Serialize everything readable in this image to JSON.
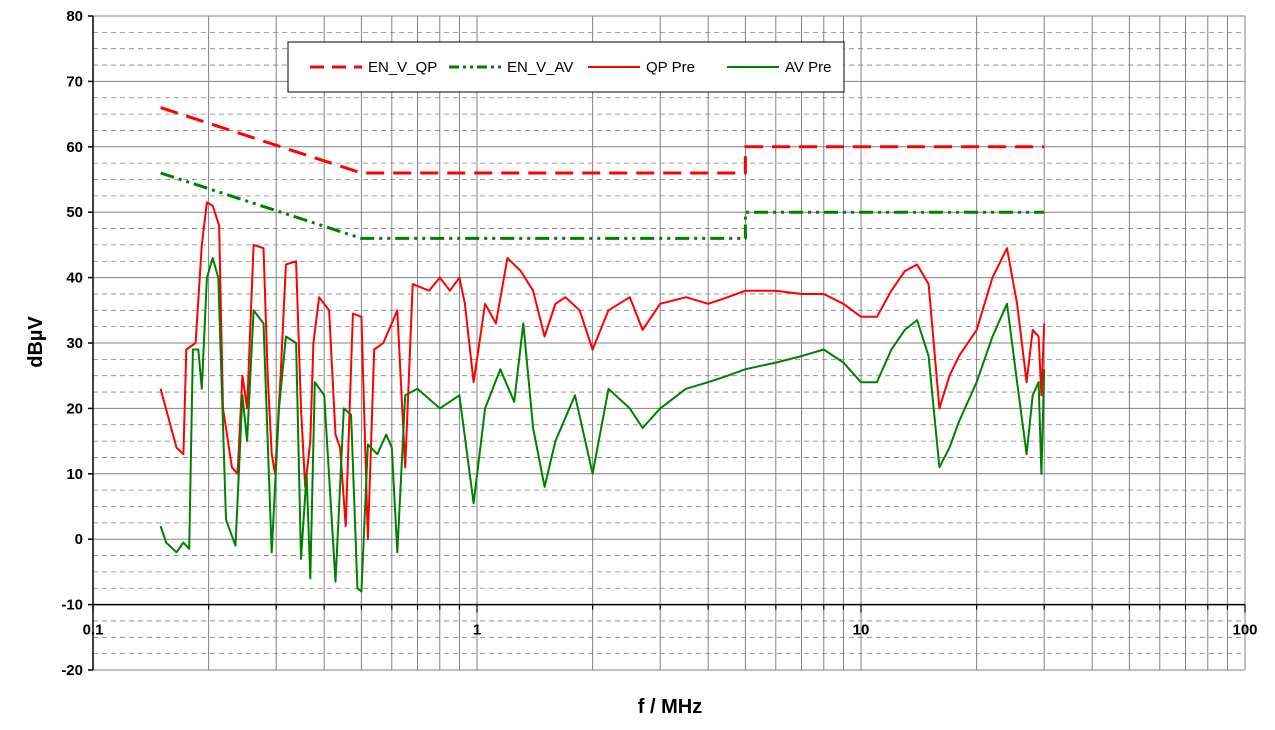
{
  "chart_data": {
    "type": "line",
    "title": "",
    "xlabel": "f / MHz",
    "ylabel": "dBµV",
    "x_scale": "log",
    "xlim": [
      0.1,
      100
    ],
    "ylim": [
      -20,
      80
    ],
    "x_ticks": [
      {
        "value": 0.1,
        "label": "0.1"
      },
      {
        "value": 1,
        "label": "1"
      },
      {
        "value": 10,
        "label": "10"
      },
      {
        "value": 100,
        "label": "100"
      }
    ],
    "y_ticks": [
      {
        "value": 80,
        "label": "80"
      },
      {
        "value": 70,
        "label": "70"
      },
      {
        "value": 60,
        "label": "60"
      },
      {
        "value": 50,
        "label": "50"
      },
      {
        "value": 40,
        "label": "40"
      },
      {
        "value": 30,
        "label": "30"
      },
      {
        "value": 20,
        "label": "20"
      },
      {
        "value": 10,
        "label": "10"
      },
      {
        "value": 0,
        "label": "0"
      },
      {
        "value": -10,
        "label": "-10"
      },
      {
        "value": -20,
        "label": "-20"
      }
    ],
    "grid": true,
    "legend_position": "top",
    "series": [
      {
        "name": "EN_V_QP",
        "color": "#ff0000",
        "dash": "dashed",
        "points": [
          [
            0.15,
            66
          ],
          [
            0.5,
            56
          ],
          [
            5,
            56
          ],
          [
            5,
            60
          ],
          [
            30,
            60
          ]
        ]
      },
      {
        "name": "EN_V_AV",
        "color": "#008000",
        "dash": "dash-dot-dot",
        "points": [
          [
            0.15,
            56
          ],
          [
            0.5,
            46
          ],
          [
            5,
            46
          ],
          [
            5,
            50
          ],
          [
            30,
            50
          ]
        ]
      },
      {
        "name": "QP Pre",
        "color": "#ff0000",
        "dash": "solid",
        "points": [
          [
            0.15,
            23
          ],
          [
            0.165,
            14
          ],
          [
            0.172,
            13
          ],
          [
            0.175,
            29
          ],
          [
            0.185,
            30
          ],
          [
            0.192,
            45
          ],
          [
            0.198,
            51.5
          ],
          [
            0.205,
            51
          ],
          [
            0.213,
            48
          ],
          [
            0.218,
            20
          ],
          [
            0.23,
            11
          ],
          [
            0.238,
            10
          ],
          [
            0.245,
            25
          ],
          [
            0.252,
            20
          ],
          [
            0.262,
            45
          ],
          [
            0.278,
            44.5
          ],
          [
            0.285,
            25
          ],
          [
            0.292,
            13
          ],
          [
            0.298,
            10
          ],
          [
            0.308,
            25
          ],
          [
            0.318,
            42
          ],
          [
            0.338,
            42.5
          ],
          [
            0.348,
            20
          ],
          [
            0.357,
            8
          ],
          [
            0.368,
            15
          ],
          [
            0.375,
            30
          ],
          [
            0.388,
            37
          ],
          [
            0.412,
            35
          ],
          [
            0.428,
            16
          ],
          [
            0.44,
            14
          ],
          [
            0.455,
            2
          ],
          [
            0.475,
            34.5
          ],
          [
            0.5,
            34
          ],
          [
            0.52,
            0
          ],
          [
            0.54,
            29
          ],
          [
            0.57,
            30
          ],
          [
            0.59,
            32
          ],
          [
            0.62,
            35
          ],
          [
            0.65,
            11
          ],
          [
            0.68,
            39
          ],
          [
            0.75,
            38
          ],
          [
            0.8,
            40
          ],
          [
            0.85,
            38
          ],
          [
            0.9,
            40
          ],
          [
            0.93,
            36
          ],
          [
            0.98,
            24
          ],
          [
            1.05,
            36
          ],
          [
            1.12,
            33
          ],
          [
            1.2,
            43
          ],
          [
            1.3,
            41
          ],
          [
            1.4,
            38
          ],
          [
            1.5,
            31
          ],
          [
            1.6,
            36
          ],
          [
            1.7,
            37
          ],
          [
            1.85,
            35
          ],
          [
            2.0,
            29
          ],
          [
            2.2,
            35
          ],
          [
            2.5,
            37
          ],
          [
            2.7,
            32
          ],
          [
            3.0,
            36
          ],
          [
            3.5,
            37
          ],
          [
            4.0,
            36
          ],
          [
            4.5,
            37
          ],
          [
            5.0,
            38
          ],
          [
            6.0,
            38
          ],
          [
            7.0,
            37.5
          ],
          [
            8.0,
            37.5
          ],
          [
            9.0,
            36
          ],
          [
            10.0,
            34
          ],
          [
            11.0,
            34
          ],
          [
            12.0,
            38
          ],
          [
            13.0,
            41
          ],
          [
            14.0,
            42
          ],
          [
            15.0,
            39
          ],
          [
            16.0,
            20
          ],
          [
            17.0,
            25
          ],
          [
            18.0,
            28
          ],
          [
            20.0,
            32
          ],
          [
            22.0,
            40
          ],
          [
            24.0,
            44.5
          ],
          [
            25.5,
            36
          ],
          [
            27.0,
            24
          ],
          [
            28.0,
            32
          ],
          [
            29.0,
            31
          ],
          [
            29.5,
            22
          ],
          [
            30.0,
            33
          ]
        ]
      },
      {
        "name": "AV Pre",
        "color": "#008000",
        "dash": "solid",
        "points": [
          [
            0.15,
            2
          ],
          [
            0.155,
            -0.5
          ],
          [
            0.165,
            -2
          ],
          [
            0.172,
            -0.5
          ],
          [
            0.178,
            -1.5
          ],
          [
            0.182,
            29
          ],
          [
            0.188,
            29
          ],
          [
            0.192,
            23
          ],
          [
            0.198,
            40
          ],
          [
            0.205,
            43
          ],
          [
            0.212,
            40
          ],
          [
            0.222,
            3
          ],
          [
            0.235,
            -1
          ],
          [
            0.245,
            22
          ],
          [
            0.252,
            15
          ],
          [
            0.262,
            35
          ],
          [
            0.278,
            33
          ],
          [
            0.285,
            15
          ],
          [
            0.292,
            -2
          ],
          [
            0.305,
            20
          ],
          [
            0.318,
            31
          ],
          [
            0.338,
            30
          ],
          [
            0.348,
            -3
          ],
          [
            0.36,
            10
          ],
          [
            0.368,
            -6
          ],
          [
            0.378,
            24
          ],
          [
            0.4,
            22
          ],
          [
            0.428,
            -6.5
          ],
          [
            0.45,
            20
          ],
          [
            0.47,
            19
          ],
          [
            0.488,
            -7.5
          ],
          [
            0.5,
            -8
          ],
          [
            0.52,
            14.5
          ],
          [
            0.55,
            13
          ],
          [
            0.58,
            16
          ],
          [
            0.6,
            14
          ],
          [
            0.62,
            -2
          ],
          [
            0.65,
            22
          ],
          [
            0.7,
            23
          ],
          [
            0.8,
            20
          ],
          [
            0.9,
            22
          ],
          [
            0.98,
            5.5
          ],
          [
            1.05,
            20
          ],
          [
            1.15,
            26
          ],
          [
            1.25,
            21
          ],
          [
            1.32,
            33
          ],
          [
            1.4,
            17
          ],
          [
            1.5,
            8
          ],
          [
            1.6,
            15
          ],
          [
            1.8,
            22
          ],
          [
            2.0,
            10
          ],
          [
            2.2,
            23
          ],
          [
            2.5,
            20
          ],
          [
            2.7,
            17
          ],
          [
            3.0,
            20
          ],
          [
            3.5,
            23
          ],
          [
            4.0,
            24
          ],
          [
            4.5,
            25
          ],
          [
            5.0,
            26
          ],
          [
            6.0,
            27
          ],
          [
            7.0,
            28
          ],
          [
            8.0,
            29
          ],
          [
            9.0,
            27
          ],
          [
            10.0,
            24
          ],
          [
            11.0,
            24
          ],
          [
            12.0,
            29
          ],
          [
            13.0,
            32
          ],
          [
            14.0,
            33.5
          ],
          [
            15.0,
            28
          ],
          [
            16.0,
            11
          ],
          [
            17.0,
            14
          ],
          [
            18.0,
            18
          ],
          [
            20.0,
            24
          ],
          [
            22.0,
            31
          ],
          [
            24.0,
            36
          ],
          [
            25.5,
            24
          ],
          [
            27.0,
            13
          ],
          [
            28.0,
            22
          ],
          [
            29.0,
            24
          ],
          [
            29.5,
            10
          ],
          [
            30.0,
            26
          ]
        ]
      }
    ]
  }
}
